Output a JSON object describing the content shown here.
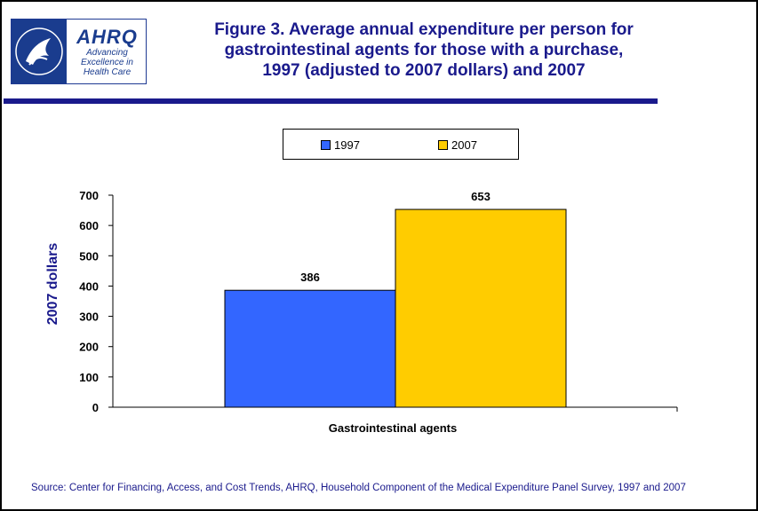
{
  "logo": {
    "mark": "AHRQ",
    "tagline": [
      "Advancing",
      "Excellence in",
      "Health Care"
    ],
    "seal_text": "DEPARTMENT OF HEALTH & HUMAN SERVICES USA"
  },
  "title": {
    "lines": [
      "Figure 3. Average annual expenditure per person for",
      "gastrointestinal agents for those with a purchase,",
      "1997 (adjusted to 2007 dollars) and 2007"
    ]
  },
  "source": "Source: Center for Financing, Access, and Cost Trends, AHRQ, Household Component of the Medical Expenditure Panel Survey, 1997 and 2007",
  "colors": {
    "title": "#1a1a8c",
    "series_1997": "#3366ff",
    "series_2007": "#ffcc00",
    "rule": "#1a1a8c"
  },
  "chart_data": {
    "type": "bar",
    "title": "Figure 3. Average annual expenditure per person for gastrointestinal agents for those with a purchase, 1997 (adjusted to 2007 dollars) and 2007",
    "categories": [
      "Gastrointestinal agents"
    ],
    "series": [
      {
        "name": "1997",
        "values": [
          386
        ],
        "color": "#3366ff"
      },
      {
        "name": "2007",
        "values": [
          653
        ],
        "color": "#ffcc00"
      }
    ],
    "data_labels": [
      "386",
      "653"
    ],
    "xlabel": "",
    "ylabel": "2007 dollars",
    "ylim": [
      0,
      700
    ],
    "yticks": [
      0,
      100,
      200,
      300,
      400,
      500,
      600,
      700
    ],
    "grid": false,
    "legend": "top"
  }
}
